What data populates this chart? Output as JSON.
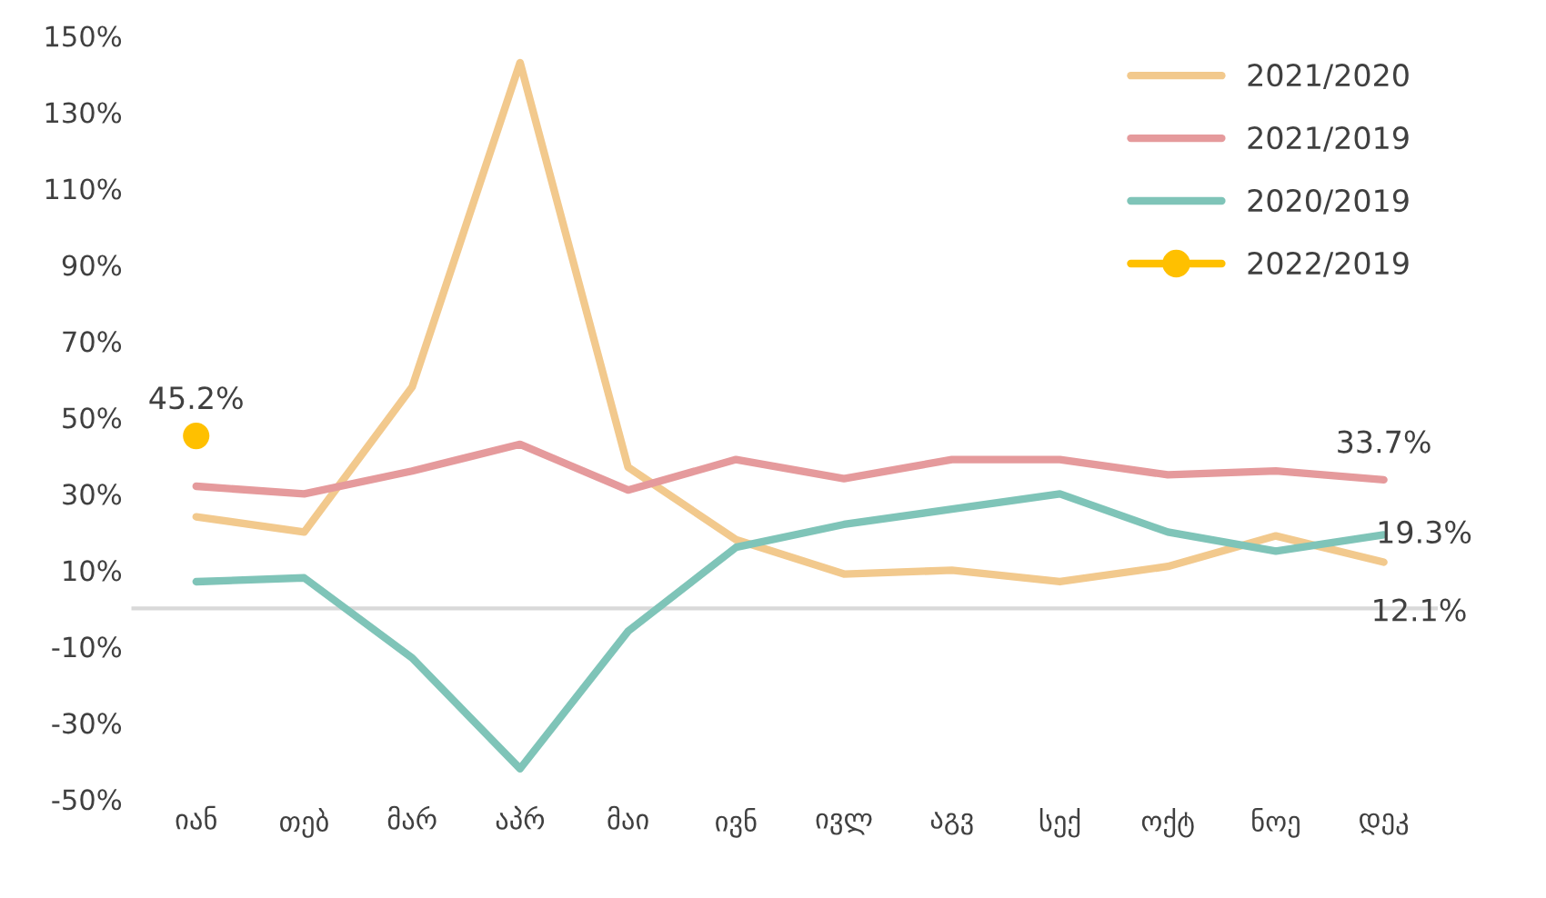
{
  "chart_data": {
    "type": "line",
    "categories": [
      "იან",
      "თებ",
      "მარ",
      "აპრ",
      "მაი",
      "ივნ",
      "ივლ",
      "აგვ",
      "სექ",
      "ოქტ",
      "ნოე",
      "დეკ"
    ],
    "series": [
      {
        "name": "2021/2020",
        "color": "#f2c98d",
        "values": [
          24,
          20,
          58,
          143,
          37,
          18,
          9,
          10,
          7,
          11,
          19,
          12.1
        ]
      },
      {
        "name": "2021/2019",
        "color": "#e59a9c",
        "values": [
          32,
          30,
          36,
          43,
          31,
          39,
          34,
          39,
          39,
          35,
          36,
          33.7
        ]
      },
      {
        "name": "2020/2019",
        "color": "#7fc4b8",
        "values": [
          7,
          8,
          -13,
          -42,
          -6,
          16,
          22,
          26,
          30,
          20,
          15,
          19.3
        ]
      },
      {
        "name": "2022/2019",
        "type": "scatter",
        "color": "#ffc000",
        "values": [
          45.2,
          null,
          null,
          null,
          null,
          null,
          null,
          null,
          null,
          null,
          null,
          null
        ]
      }
    ],
    "ylim": [
      -50,
      150
    ],
    "yticks": [
      {
        "value": -50,
        "label": "-50%"
      },
      {
        "value": -30,
        "label": "-30%"
      },
      {
        "value": -10,
        "label": "-10%"
      },
      {
        "value": 10,
        "label": "10%"
      },
      {
        "value": 30,
        "label": "30%"
      },
      {
        "value": 50,
        "label": "50%"
      },
      {
        "value": 70,
        "label": "70%"
      },
      {
        "value": 90,
        "label": "90%"
      },
      {
        "value": 110,
        "label": "110%"
      },
      {
        "value": 130,
        "label": "130%"
      },
      {
        "value": 150,
        "label": "150%"
      }
    ],
    "ref_lines": [
      {
        "axis": "y",
        "value": 0,
        "color": "#d9d9d9"
      }
    ],
    "annotations": [
      {
        "text": "45.2%",
        "x": "იან",
        "y": 45.2
      },
      {
        "text": "33.7%",
        "x": "დეკ",
        "y": 33.7
      },
      {
        "text": "19.3%",
        "x": "დეკ",
        "y": 19.3
      },
      {
        "text": "12.1%",
        "x": "დეკ",
        "y": 12.1
      }
    ],
    "legend": "top right",
    "grid": false,
    "line_style": "solid"
  }
}
